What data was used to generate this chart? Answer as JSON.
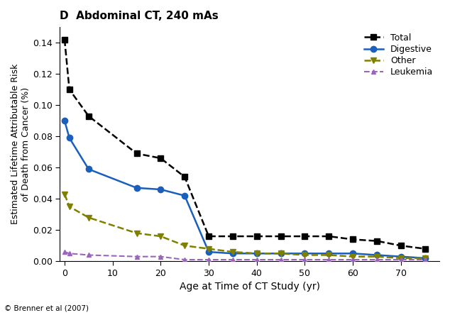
{
  "title": "D  Abdominal CT, 240 mAs",
  "xlabel": "Age at Time of CT Study (yr)",
  "ylabel": "Estimated Lifetime Attributable Risk\nof Death from Cancer (%)",
  "footnote": "© Brenner et al (2007)",
  "ages": [
    0,
    1,
    5,
    15,
    20,
    25,
    30,
    35,
    40,
    45,
    50,
    55,
    60,
    65,
    70,
    75
  ],
  "total": [
    0.142,
    0.11,
    0.093,
    0.069,
    0.066,
    0.054,
    0.016,
    0.016,
    0.016,
    0.016,
    0.016,
    0.016,
    0.014,
    0.013,
    0.01,
    0.008
  ],
  "digestive": [
    0.09,
    0.079,
    0.059,
    0.047,
    0.046,
    0.042,
    0.006,
    0.005,
    0.005,
    0.005,
    0.005,
    0.005,
    0.005,
    0.004,
    0.003,
    0.002
  ],
  "other": [
    0.043,
    0.035,
    0.028,
    0.018,
    0.016,
    0.01,
    0.008,
    0.006,
    0.005,
    0.005,
    0.004,
    0.004,
    0.003,
    0.003,
    0.002,
    0.002
  ],
  "leukemia": [
    0.006,
    0.005,
    0.004,
    0.003,
    0.003,
    0.001,
    0.001,
    0.001,
    0.001,
    0.001,
    0.001,
    0.001,
    0.001,
    0.001,
    0.001,
    0.001
  ],
  "color_total": "#000000",
  "color_digestive": "#1a5fbb",
  "color_other": "#808000",
  "color_leukemia": "#9966bb",
  "bg_color": "#ffffff",
  "ylim": [
    0,
    0.15
  ],
  "xlim": [
    -1,
    78
  ],
  "xticks": [
    0,
    10,
    20,
    30,
    40,
    50,
    60,
    70
  ],
  "yticks": [
    0.0,
    0.02,
    0.04,
    0.06,
    0.08,
    0.1,
    0.12,
    0.14
  ]
}
